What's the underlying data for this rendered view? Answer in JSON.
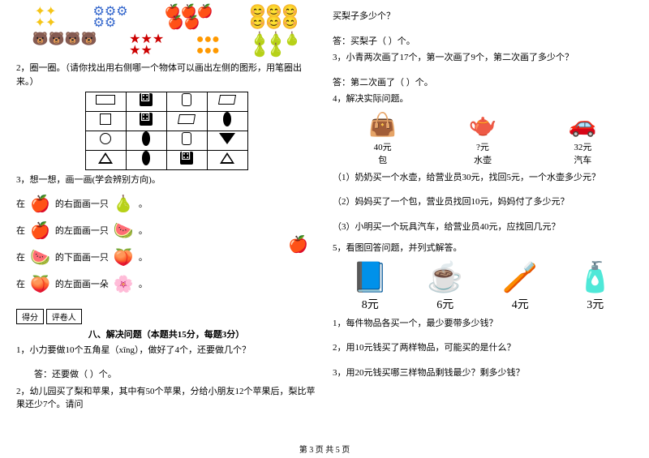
{
  "leftCol": {
    "q2": "2，圈一圈。（请你找出用右侧哪一个物体可以画出左侧的图形，用笔圈出来。）",
    "q3": "3，想一想，画一画(学会辨别方向)。",
    "q3_lines": [
      {
        "prefix": "在",
        "fruit": "🍎",
        "text": "的右面画一只",
        "icon": "🍐",
        "suffix": "。"
      },
      {
        "prefix": "在",
        "fruit": "🍎",
        "text": "的左面画一只",
        "icon": "🍉",
        "suffix": "。"
      },
      {
        "prefix": "在",
        "fruit": "🍉",
        "text": "的下面画一只",
        "icon": "🍑",
        "suffix": "。"
      },
      {
        "prefix": "在",
        "fruit": "🍑",
        "text": "的左面画一朵",
        "icon": "🌸",
        "suffix": "。"
      }
    ],
    "scorebox": [
      "得分",
      "评卷人"
    ],
    "section8": "八、解决问题（本题共15分，每题3分）",
    "q8_1": "1，小力要做10个五角星（xīng），做好了4个，还要做几个？",
    "q8_1_ans": "答：还要做（  ）个。",
    "q8_2": "2，幼儿园买了梨和苹果，其中有50个苹果，分给小朋友12个苹果后，梨比苹果还少7个。请问"
  },
  "rightCol": {
    "q_pear": "买梨子多少个？",
    "q_pear_ans": "答：买梨子（  ）个。",
    "q3": "3，小青两次画了17个，第一次画了9个，第二次画了多少个？",
    "q3_ans": "答：第二次画了（  ）个。",
    "q4": "4，解决实际问题。",
    "items": [
      {
        "img": "👜",
        "price": "40元",
        "name": "包"
      },
      {
        "img": "🫖",
        "price": "?元",
        "name": "水壶"
      },
      {
        "img": "🚗",
        "price": "32元",
        "name": "汽车"
      }
    ],
    "q4_1": "（1）奶奶买一个水壶，给营业员30元，找回5元，一个水壶多少元？",
    "q4_2": "（2）妈妈买了一个包，营业员找回10元，妈妈付了多少元？",
    "q4_3": "（3）小明买一个玩具汽车，给营业员40元，应找回几元？",
    "q5": "5，看图回答问题，并列式解答。",
    "items2": [
      {
        "img": "📘",
        "price": "8元"
      },
      {
        "img": "☕",
        "price": "6元"
      },
      {
        "img": "🪥",
        "price": "4元"
      },
      {
        "img": "🧴",
        "price": "3元"
      }
    ],
    "q5_1": "1，每件物品各买一个，最少要带多少钱？",
    "q5_2": "2，用10元钱买了两样物品，可能买的是什么？",
    "q5_3": "3，用20元钱买哪三样物品剩钱最少？剩多少钱？"
  },
  "footer": "第 3 页 共 5 页"
}
